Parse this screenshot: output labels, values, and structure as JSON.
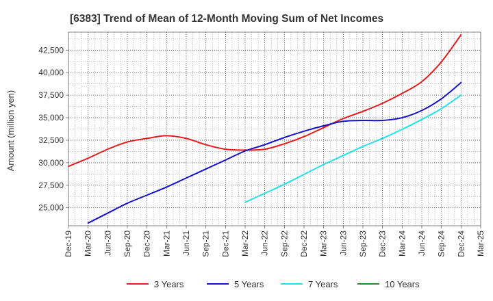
{
  "chart_data": {
    "type": "line",
    "title": "[6383]  Trend of Mean of 12-Month Moving Sum of Net Incomes",
    "ylabel": "Amount (million yen)",
    "xlabel": "",
    "ylim": [
      23000,
      44500
    ],
    "yticks": [
      25000,
      27500,
      30000,
      32500,
      35000,
      37500,
      40000,
      42500
    ],
    "ytick_labels": [
      "25,000",
      "27,500",
      "30,000",
      "32,500",
      "35,000",
      "37,500",
      "40,000",
      "42,500"
    ],
    "xtick_labels": [
      "Dec-19",
      "Mar-20",
      "Jun-20",
      "Sep-20",
      "Dec-20",
      "Mar-21",
      "Jun-21",
      "Sep-21",
      "Dec-21",
      "Mar-22",
      "Jun-22",
      "Sep-22",
      "Dec-22",
      "Mar-23",
      "Jun-23",
      "Sep-23",
      "Dec-23",
      "Mar-24",
      "Jun-24",
      "Sep-24",
      "Dec-24",
      "Mar-25"
    ],
    "grid": true,
    "legend_position": "bottom",
    "series": [
      {
        "name": "3 Years",
        "color": "#e8191a",
        "x": [
          "Dec-19",
          "Mar-20",
          "Jun-20",
          "Sep-20",
          "Dec-20",
          "Mar-21",
          "Jun-21",
          "Sep-21",
          "Dec-21",
          "Mar-22",
          "Jun-22",
          "Sep-22",
          "Dec-22",
          "Mar-23",
          "Jun-23",
          "Sep-23",
          "Dec-23",
          "Mar-24",
          "Jun-24",
          "Sep-24",
          "Dec-24"
        ],
        "values": [
          29600,
          30500,
          31500,
          32300,
          32700,
          33000,
          32700,
          32000,
          31500,
          31400,
          31500,
          32100,
          32900,
          33900,
          34900,
          35700,
          36600,
          37700,
          39000,
          41200,
          44200
        ]
      },
      {
        "name": "5 Years",
        "color": "#1111cc",
        "x": [
          "Mar-20",
          "Jun-20",
          "Sep-20",
          "Dec-20",
          "Mar-21",
          "Jun-21",
          "Sep-21",
          "Dec-21",
          "Mar-22",
          "Jun-22",
          "Sep-22",
          "Dec-22",
          "Mar-23",
          "Jun-23",
          "Sep-23",
          "Dec-23",
          "Mar-24",
          "Jun-24",
          "Sep-24",
          "Dec-24"
        ],
        "values": [
          23300,
          24400,
          25500,
          26400,
          27300,
          28300,
          29300,
          30300,
          31300,
          32000,
          32800,
          33500,
          34100,
          34600,
          34700,
          34700,
          35000,
          35800,
          37100,
          38900
        ]
      },
      {
        "name": "7 Years",
        "color": "#22e0ee",
        "x": [
          "Mar-22",
          "Jun-22",
          "Sep-22",
          "Dec-22",
          "Mar-23",
          "Jun-23",
          "Sep-23",
          "Dec-23",
          "Mar-24",
          "Jun-24",
          "Sep-24",
          "Dec-24"
        ],
        "values": [
          25600,
          26600,
          27600,
          28700,
          29800,
          30800,
          31800,
          32700,
          33700,
          34800,
          36000,
          37500
        ]
      },
      {
        "name": "10 Years",
        "color": "#228b22",
        "x": [],
        "values": []
      }
    ]
  }
}
